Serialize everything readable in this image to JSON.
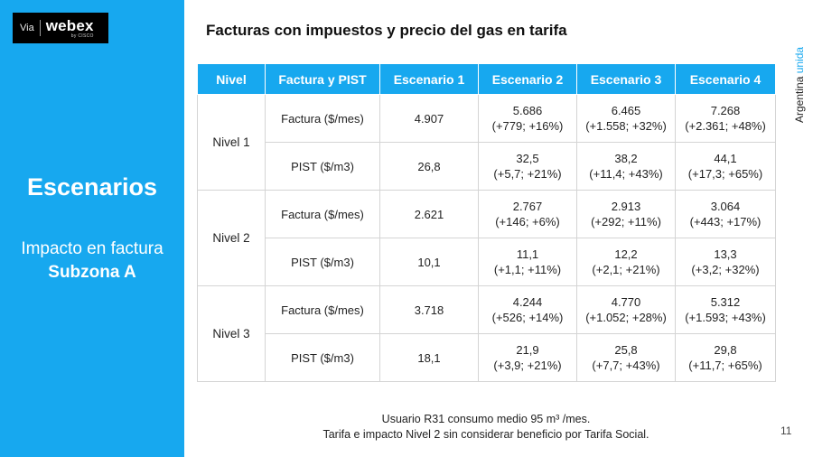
{
  "sidebar": {
    "via": "Via",
    "brand": "webex",
    "brand_by": "by CISCO",
    "title": "Escenarios",
    "subtitle_line1": "Impacto en factura",
    "subtitle_line2": "Subzona A",
    "bg_color": "#17a8ef"
  },
  "slide": {
    "title": "Facturas con impuestos y precio del gas en tarifa",
    "brand_part1": "Argentina",
    "brand_part2": "unida",
    "page_number": "11",
    "footnote_line1": "Usuario R31 consumo medio 95 m³ /mes.",
    "footnote_line2": "Tarifa e impacto Nivel 2 sin considerar beneficio por Tarifa Social."
  },
  "table": {
    "headers": [
      "Nivel",
      "Factura y PIST",
      "Escenario 1",
      "Escenario 2",
      "Escenario 3",
      "Escenario 4"
    ],
    "header_color": "#17a8ef",
    "levels": [
      {
        "label": "Nivel 1",
        "rows": [
          {
            "metric": "Factura ($/mes)",
            "e1": "4.907",
            "e2": "5.686",
            "e2d": "(+779; +16%)",
            "e3": "6.465",
            "e3d": "(+1.558; +32%)",
            "e4": "7.268",
            "e4d": "(+2.361; +48%)"
          },
          {
            "metric": "PIST ($/m3)",
            "e1": "26,8",
            "e2": "32,5",
            "e2d": "(+5,7; +21%)",
            "e3": "38,2",
            "e3d": "(+11,4; +43%)",
            "e4": "44,1",
            "e4d": "(+17,3; +65%)"
          }
        ]
      },
      {
        "label": "Nivel 2",
        "rows": [
          {
            "metric": "Factura ($/mes)",
            "e1": "2.621",
            "e2": "2.767",
            "e2d": "(+146; +6%)",
            "e3": "2.913",
            "e3d": "(+292; +11%)",
            "e4": "3.064",
            "e4d": "(+443; +17%)"
          },
          {
            "metric": "PIST ($/m3)",
            "e1": "10,1",
            "e2": "11,1",
            "e2d": "(+1,1; +11%)",
            "e3": "12,2",
            "e3d": "(+2,1; +21%)",
            "e4": "13,3",
            "e4d": "(+3,2; +32%)"
          }
        ]
      },
      {
        "label": "Nivel 3",
        "rows": [
          {
            "metric": "Factura ($/mes)",
            "e1": "3.718",
            "e2": "4.244",
            "e2d": "(+526; +14%)",
            "e3": "4.770",
            "e3d": "(+1.052; +28%)",
            "e4": "5.312",
            "e4d": "(+1.593; +43%)"
          },
          {
            "metric": "PIST ($/m3)",
            "e1": "18,1",
            "e2": "21,9",
            "e2d": "(+3,9; +21%)",
            "e3": "25,8",
            "e3d": "(+7,7; +43%)",
            "e4": "29,8",
            "e4d": "(+11,7; +65%)"
          }
        ]
      }
    ]
  }
}
